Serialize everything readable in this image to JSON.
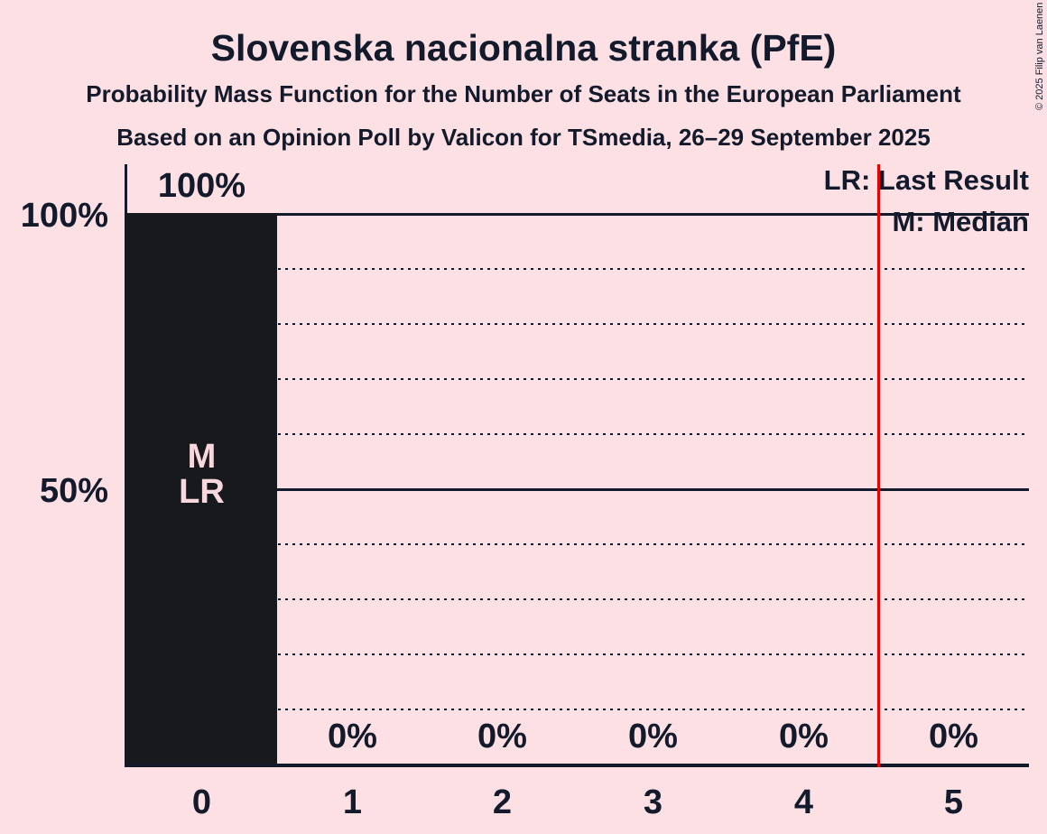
{
  "chart_data": {
    "type": "bar",
    "title": "Slovenska nacionalna stranka (PfE)",
    "subtitle": "Probability Mass Function for the Number of Seats in the European Parliament",
    "source_line": "Based on an Opinion Poll by Valicon for TSmedia, 26–29 September 2025",
    "categories": [
      "0",
      "1",
      "2",
      "3",
      "4",
      "5"
    ],
    "values": [
      100,
      0,
      0,
      0,
      0,
      0
    ],
    "value_labels": [
      "100%",
      "0%",
      "0%",
      "0%",
      "0%",
      "0%"
    ],
    "bar_annotations": [
      {
        "category_index": 0,
        "lines": [
          "M",
          "LR"
        ]
      }
    ],
    "ylim": [
      0,
      100
    ],
    "yticks": [
      {
        "pct": 100,
        "label": "100%"
      },
      {
        "pct": 50,
        "label": "50%"
      }
    ],
    "gridlines": {
      "solid_pct": [
        100,
        50
      ],
      "dotted_pct": [
        90,
        80,
        70,
        60,
        40,
        30,
        20,
        10
      ]
    },
    "majority_line": {
      "x": 4.5
    },
    "legend": [
      {
        "label": "LR: Last Result"
      },
      {
        "label": "M: Median"
      }
    ],
    "copyright": "© 2025 Filip van Laenen",
    "colors": {
      "background": "#FCE0E3",
      "text": "#131A2C",
      "bar": "#17191D",
      "bar_label": "#F8D8DC",
      "majority_line": "#EE0000"
    }
  }
}
